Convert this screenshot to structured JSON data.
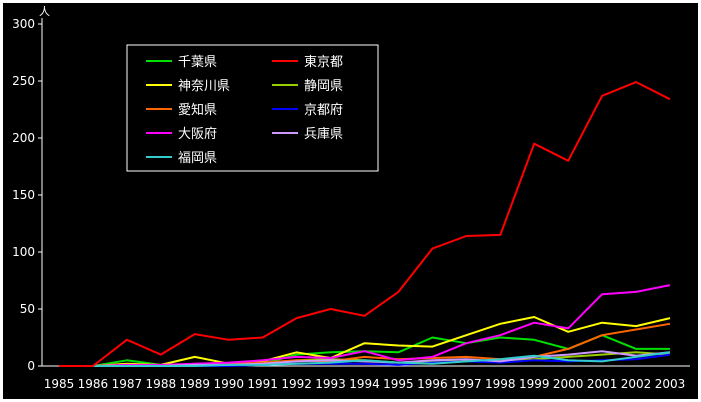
{
  "chart_data": {
    "type": "line",
    "title": "",
    "xlabel": "",
    "ylabel": "",
    "y_unit": "人",
    "ylim": [
      0,
      300
    ],
    "yticks": [
      0,
      50,
      100,
      150,
      200,
      250,
      300
    ],
    "grid": false,
    "legend_position": "top-left",
    "categories": [
      "1985",
      "1986",
      "1987",
      "1988",
      "1989",
      "1990",
      "1991",
      "1992",
      "1993",
      "1994",
      "1995",
      "1996",
      "1997",
      "1998",
      "1999",
      "2000",
      "2001",
      "2002",
      "2003"
    ],
    "series": [
      {
        "name": "千葉県",
        "color": "#00e000",
        "values": [
          0,
          0,
          5,
          1,
          1,
          1,
          2,
          10,
          12,
          13,
          12,
          25,
          20,
          25,
          23,
          15,
          27,
          15,
          15
        ]
      },
      {
        "name": "東京都",
        "color": "#ff0000",
        "values": [
          0,
          0,
          23,
          10,
          28,
          23,
          25,
          42,
          50,
          44,
          65,
          103,
          114,
          115,
          195,
          180,
          237,
          249,
          234
        ]
      },
      {
        "name": "神奈川県",
        "color": "#ffff00",
        "values": [
          0,
          0,
          2,
          1,
          8,
          2,
          4,
          12,
          7,
          20,
          18,
          17,
          27,
          37,
          43,
          30,
          38,
          35,
          42
        ]
      },
      {
        "name": "静岡県",
        "color": "#99cc00",
        "values": [
          0,
          0,
          0,
          0,
          0,
          1,
          2,
          5,
          6,
          5,
          3,
          4,
          5,
          4,
          6,
          8,
          10,
          12,
          10
        ]
      },
      {
        "name": "愛知県",
        "color": "#ff6600",
        "values": [
          0,
          0,
          1,
          0,
          2,
          2,
          3,
          5,
          4,
          8,
          6,
          7,
          8,
          6,
          8,
          15,
          27,
          32,
          37
        ]
      },
      {
        "name": "京都府",
        "color": "#0000ff",
        "values": [
          0,
          0,
          0,
          0,
          0,
          0,
          1,
          2,
          2,
          2,
          1,
          3,
          4,
          3,
          5,
          4,
          5,
          6,
          10
        ]
      },
      {
        "name": "大阪府",
        "color": "#ff00ff",
        "values": [
          0,
          0,
          1,
          1,
          2,
          3,
          5,
          8,
          7,
          13,
          5,
          8,
          20,
          27,
          38,
          33,
          63,
          65,
          71
        ]
      },
      {
        "name": "兵庫県",
        "color": "#cc99ff",
        "values": [
          0,
          0,
          0,
          0,
          1,
          1,
          2,
          4,
          5,
          4,
          3,
          5,
          6,
          4,
          8,
          10,
          13,
          9,
          12
        ]
      },
      {
        "name": "福岡県",
        "color": "#33cccc",
        "values": [
          0,
          0,
          0,
          0,
          0,
          1,
          1,
          2,
          3,
          5,
          3,
          2,
          4,
          6,
          9,
          5,
          4,
          8,
          12
        ]
      }
    ]
  }
}
